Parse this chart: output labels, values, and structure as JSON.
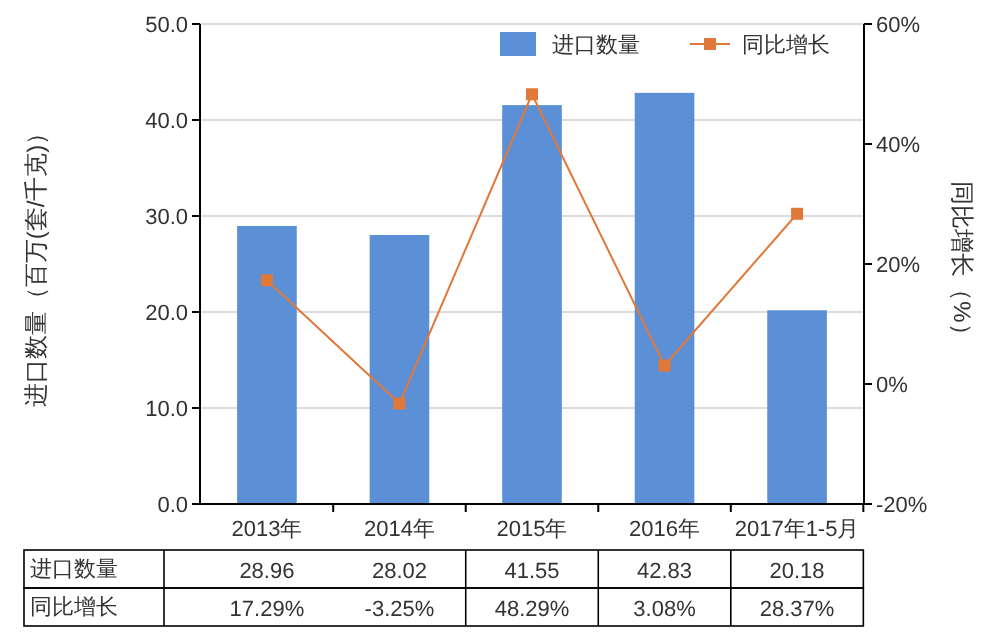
{
  "chart_data": {
    "type": "bar",
    "categories": [
      "2013年",
      "2014年",
      "2015年",
      "2016年",
      "2017年1-5月"
    ],
    "series": [
      {
        "name": "进口数量",
        "color": "#5b8fd6",
        "values": [
          28.96,
          28.02,
          41.55,
          42.83,
          20.18
        ],
        "value_labels": [
          "28.96",
          "28.02",
          "41.55",
          "42.83",
          "20.18"
        ]
      },
      {
        "name": "同比增长",
        "type": "line",
        "axis": "y2",
        "color": "#e0783a",
        "marker": "square",
        "values": [
          17.29,
          -3.25,
          48.29,
          3.08,
          28.37
        ],
        "value_labels": [
          "17.29%",
          "-3.25%",
          "48.29%",
          "3.08%",
          "28.37%"
        ]
      }
    ],
    "ylabel": "进口数量（百万(套/千克)）",
    "y2label": "同比增长（%）",
    "ylim": [
      0,
      50
    ],
    "yticks": [
      {
        "value": 0,
        "label": "0.0"
      },
      {
        "value": 10,
        "label": "10.0"
      },
      {
        "value": 20,
        "label": "20.0"
      },
      {
        "value": 30,
        "label": "30.0"
      },
      {
        "value": 40,
        "label": "40.0"
      },
      {
        "value": 50,
        "label": "50.0"
      }
    ],
    "y2lim": [
      -20,
      60
    ],
    "y2ticks": [
      {
        "value": -20,
        "label": "-20%"
      },
      {
        "value": 0,
        "label": "0%"
      },
      {
        "value": 20,
        "label": "20%"
      },
      {
        "value": 40,
        "label": "40%"
      },
      {
        "value": 60,
        "label": "60%"
      }
    ],
    "grid": "y",
    "legend": "top right"
  }
}
